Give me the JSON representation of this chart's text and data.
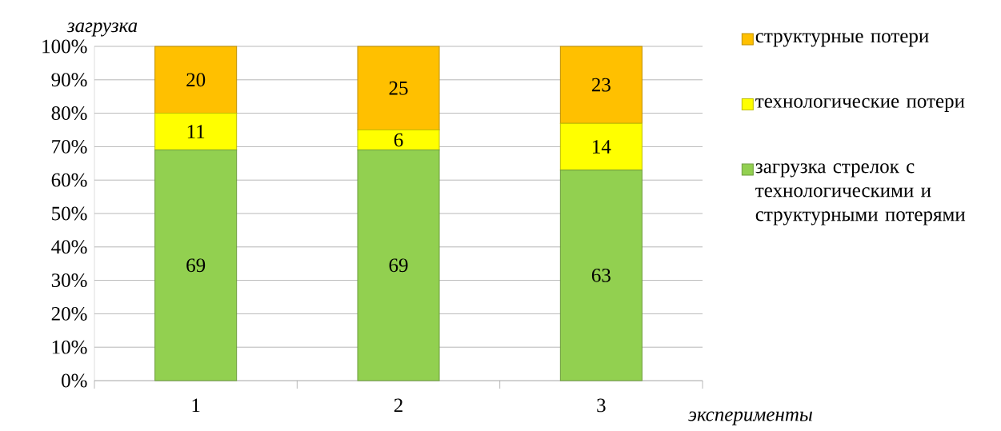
{
  "chart_data": {
    "type": "bar",
    "stacked": true,
    "xlabel": "эксперименты",
    "ylabel": "загрузка",
    "categories": [
      "1",
      "2",
      "3"
    ],
    "series": [
      {
        "name": "загрузка стрелок с технологическими и структурными потерями",
        "color": "#92d050",
        "values": [
          69,
          69,
          63
        ]
      },
      {
        "name": "технологические потери",
        "color": "#ffff00",
        "values": [
          11,
          6,
          14
        ]
      },
      {
        "name": "структурные потери",
        "color": "#ffc000",
        "values": [
          20,
          25,
          23
        ]
      }
    ],
    "ylim": [
      0,
      100
    ],
    "yticks": [
      {
        "value": 0,
        "label": "0%"
      },
      {
        "value": 10,
        "label": "10%"
      },
      {
        "value": 20,
        "label": "20%"
      },
      {
        "value": 30,
        "label": "30%"
      },
      {
        "value": 40,
        "label": "40%"
      },
      {
        "value": 50,
        "label": "50%"
      },
      {
        "value": 60,
        "label": "60%"
      },
      {
        "value": 70,
        "label": "70%"
      },
      {
        "value": 80,
        "label": "80%"
      },
      {
        "value": 90,
        "label": "90%"
      },
      {
        "value": 100,
        "label": "100%"
      }
    ],
    "grid": "y",
    "legend": "right",
    "data_labels": true
  }
}
